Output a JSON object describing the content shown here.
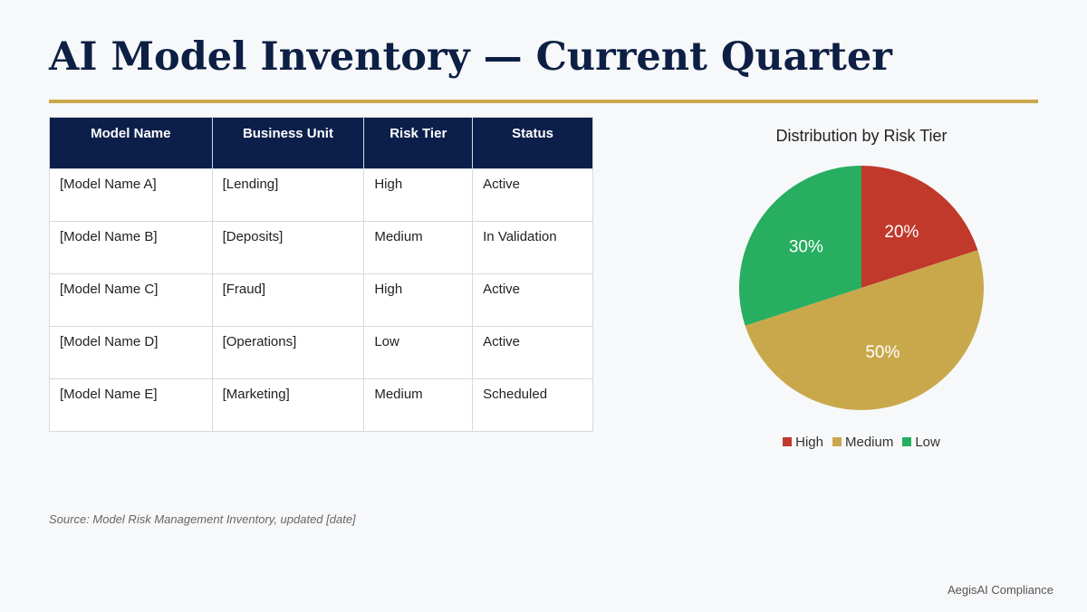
{
  "header": {
    "title": "AI Model Inventory — Current Quarter"
  },
  "table": {
    "headers": [
      "Model Name",
      "Business Unit",
      "Risk Tier",
      "Status"
    ],
    "rows": [
      [
        "[Model Name A]",
        "[Lending]",
        "High",
        "Active"
      ],
      [
        "[Model Name B]",
        "[Deposits]",
        "Medium",
        "In Validation"
      ],
      [
        "[Model Name C]",
        "[Fraud]",
        "High",
        "Active"
      ],
      [
        "[Model Name D]",
        "[Operations]",
        "Low",
        "Active"
      ],
      [
        "[Model Name E]",
        "[Marketing]",
        "Medium",
        "Scheduled"
      ]
    ]
  },
  "chart_data": {
    "type": "pie",
    "title": "Distribution by Risk Tier",
    "categories": [
      "High",
      "Medium",
      "Low"
    ],
    "values": [
      20,
      50,
      30
    ],
    "value_labels": [
      "20%",
      "50%",
      "30%"
    ],
    "colors": [
      "#c0392b",
      "#c9a84c",
      "#27ae60"
    ],
    "legend": "bottom"
  },
  "source": "Source: Model Risk Management Inventory, updated [date]",
  "footer": "AegisAI Compliance"
}
